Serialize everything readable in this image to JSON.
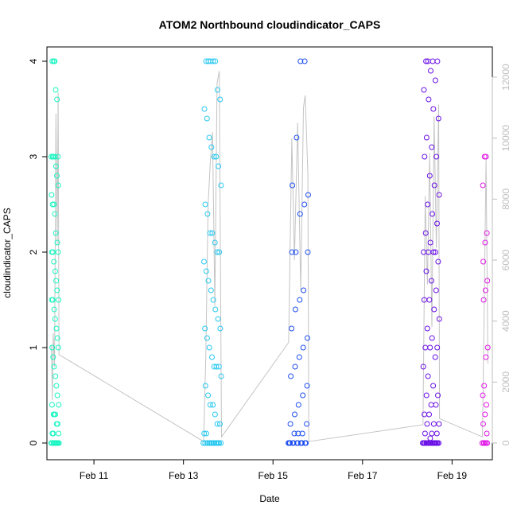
{
  "chart_data": {
    "type": "scatter",
    "title": "ATOM2 Northbound cloudindicator_CAPS",
    "xlabel": "Date",
    "ylabel": "cloudindicator_CAPS",
    "x_ticks": [
      "Feb 11",
      "Feb 13",
      "Feb 15",
      "Feb 17",
      "Feb 19"
    ],
    "x_tick_days": [
      11,
      13,
      15,
      17,
      19
    ],
    "xlim": [
      9.95,
      19.9
    ],
    "ylim": [
      0,
      4
    ],
    "y_ticks": [
      0,
      1,
      2,
      3,
      4
    ],
    "y2_ticks": [
      0,
      2000,
      4000,
      6000,
      8000,
      10000,
      12000
    ],
    "y2lim": [
      0,
      12000
    ],
    "grid": false,
    "series": [
      {
        "color": "#19f5c2",
        "start": 10.05,
        "end": 10.22,
        "values": [
          0,
          0,
          0,
          0,
          0,
          0,
          0,
          0,
          0,
          0,
          0,
          0,
          0.1,
          0.1,
          0.1,
          0.2,
          0.2,
          0.3,
          0.3,
          0.3,
          0.4,
          0.4,
          0.5,
          0.6,
          0.7,
          0.8,
          0.9,
          1.0,
          1.0,
          1.1,
          1.2,
          1.3,
          1.4,
          1.5,
          1.5,
          1.5,
          1.6,
          1.7,
          1.8,
          1.9,
          2.0,
          2.0,
          2.0,
          2.1,
          2.2,
          2.4,
          2.5,
          2.5,
          2.6,
          2.7,
          2.8,
          2.9,
          3.0,
          3.0,
          3.0,
          3.0,
          3.0,
          3.6,
          3.7,
          4.0,
          4.0,
          4.0
        ]
      },
      {
        "color": "#29c8f0",
        "start": 13.45,
        "end": 13.85,
        "values": [
          0,
          0,
          0,
          0,
          0,
          0,
          0,
          0,
          0,
          0,
          0,
          0,
          0,
          0,
          0.1,
          0.1,
          0.2,
          0.2,
          0.3,
          0.4,
          0.4,
          0.5,
          0.6,
          0.7,
          0.8,
          0.8,
          0.8,
          0.9,
          1.0,
          1.1,
          1.2,
          1.2,
          1.3,
          1.4,
          1.5,
          1.6,
          1.7,
          1.8,
          1.9,
          2.0,
          2.0,
          2.1,
          2.2,
          2.2,
          2.4,
          2.5,
          2.7,
          2.9,
          3.0,
          3.0,
          3.1,
          3.2,
          3.4,
          3.5,
          3.6,
          3.7,
          4.0,
          4.0,
          4.0,
          4.0,
          4.0
        ]
      },
      {
        "color": "#1f4ff0",
        "start": 15.35,
        "end": 15.8,
        "values": [
          0,
          0,
          0,
          0,
          0,
          0,
          0,
          0,
          0,
          0,
          0,
          0,
          0,
          0,
          0,
          0,
          0.1,
          0.1,
          0.1,
          0.2,
          0.2,
          0.3,
          0.4,
          0.5,
          0.6,
          0.7,
          0.8,
          0.9,
          1.0,
          1.1,
          1.2,
          1.4,
          1.5,
          1.6,
          2.0,
          2.0,
          2.0,
          2.4,
          2.5,
          2.6,
          2.7,
          3.2,
          4.0,
          4.0
        ]
      },
      {
        "color": "#6a11e6",
        "start": 18.35,
        "end": 18.72,
        "values": [
          0,
          0,
          0,
          0,
          0,
          0,
          0,
          0,
          0,
          0,
          0,
          0,
          0,
          0,
          0,
          0,
          0,
          0,
          0,
          0.05,
          0.1,
          0.1,
          0.1,
          0.2,
          0.2,
          0.2,
          0.3,
          0.3,
          0.4,
          0.4,
          0.5,
          0.5,
          0.6,
          0.7,
          0.8,
          0.9,
          1.0,
          1.0,
          1.0,
          1.1,
          1.2,
          1.3,
          1.4,
          1.5,
          1.5,
          1.6,
          1.7,
          1.8,
          1.9,
          2.0,
          2.0,
          2.0,
          2.0,
          2.1,
          2.2,
          2.3,
          2.4,
          2.5,
          2.6,
          2.7,
          2.8,
          3.0,
          3.0,
          3.1,
          3.2,
          3.4,
          3.5,
          3.6,
          3.7,
          3.8,
          3.9,
          4.0,
          4.0,
          4.0,
          4.0
        ]
      },
      {
        "color": "#e016e6",
        "start": 19.68,
        "end": 19.8,
        "values": [
          0,
          0,
          0,
          0,
          0,
          0,
          0.1,
          0.2,
          0.3,
          0.4,
          0.5,
          0.6,
          0.9,
          1.0,
          1.5,
          1.6,
          1.7,
          1.9,
          2.1,
          2.2,
          2.7,
          3.0,
          3.0
        ]
      }
    ],
    "secondary_line": {
      "color": "#c4c4c4",
      "axis": "right",
      "points": [
        [
          10.05,
          3200
        ],
        [
          10.07,
          1400
        ],
        [
          10.09,
          3600
        ],
        [
          10.12,
          2500
        ],
        [
          10.15,
          10800
        ],
        [
          10.18,
          6500
        ],
        [
          10.2,
          11500
        ],
        [
          10.22,
          2900
        ],
        [
          13.45,
          50
        ],
        [
          13.5,
          2900
        ],
        [
          13.55,
          7800
        ],
        [
          13.6,
          9200
        ],
        [
          13.65,
          10200
        ],
        [
          13.7,
          4500
        ],
        [
          13.75,
          11800
        ],
        [
          13.8,
          12200
        ],
        [
          13.85,
          200
        ],
        [
          15.35,
          3300
        ],
        [
          15.42,
          10000
        ],
        [
          15.48,
          6000
        ],
        [
          15.55,
          10500
        ],
        [
          15.62,
          5000
        ],
        [
          15.68,
          11000
        ],
        [
          15.72,
          11400
        ],
        [
          15.78,
          8800
        ],
        [
          15.8,
          50
        ],
        [
          18.35,
          600
        ],
        [
          18.4,
          8100
        ],
        [
          18.45,
          5200
        ],
        [
          18.5,
          9500
        ],
        [
          18.55,
          3800
        ],
        [
          18.6,
          10700
        ],
        [
          18.65,
          6400
        ],
        [
          18.7,
          11100
        ],
        [
          18.72,
          800
        ],
        [
          19.68,
          200
        ],
        [
          19.72,
          4800
        ],
        [
          19.76,
          9300
        ],
        [
          19.8,
          2600
        ]
      ]
    }
  }
}
